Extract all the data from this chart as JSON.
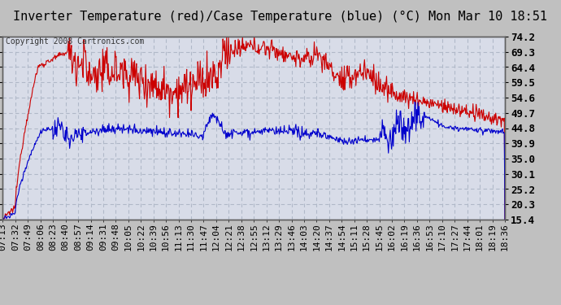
{
  "title": "Inverter Temperature (red)/Case Temperature (blue) (°C) Mon Mar 10 18:51",
  "copyright": "Copyright 2008 Cartronics.com",
  "ylabel_right_ticks": [
    74.2,
    69.3,
    64.4,
    59.5,
    54.6,
    49.7,
    44.8,
    39.9,
    35.0,
    30.1,
    25.2,
    20.3,
    15.4
  ],
  "ymin": 15.4,
  "ymax": 74.2,
  "fig_bg": "#c0c0c0",
  "plot_bg": "#d8dce8",
  "grid_color": "#b0b8c8",
  "red_color": "#cc0000",
  "blue_color": "#0000cc",
  "title_fontsize": 11,
  "copyright_fontsize": 7,
  "tick_label_fontsize": 8,
  "x_tick_labels": [
    "07:13",
    "07:32",
    "07:49",
    "08:06",
    "08:23",
    "08:40",
    "08:57",
    "09:14",
    "09:31",
    "09:48",
    "10:05",
    "10:22",
    "10:39",
    "10:56",
    "11:13",
    "11:30",
    "11:47",
    "12:04",
    "12:21",
    "12:38",
    "12:55",
    "13:12",
    "13:29",
    "13:46",
    "14:03",
    "14:20",
    "14:37",
    "14:54",
    "15:11",
    "15:28",
    "15:45",
    "16:02",
    "16:19",
    "16:36",
    "16:53",
    "17:10",
    "17:27",
    "17:44",
    "18:01",
    "18:19",
    "18:36"
  ]
}
